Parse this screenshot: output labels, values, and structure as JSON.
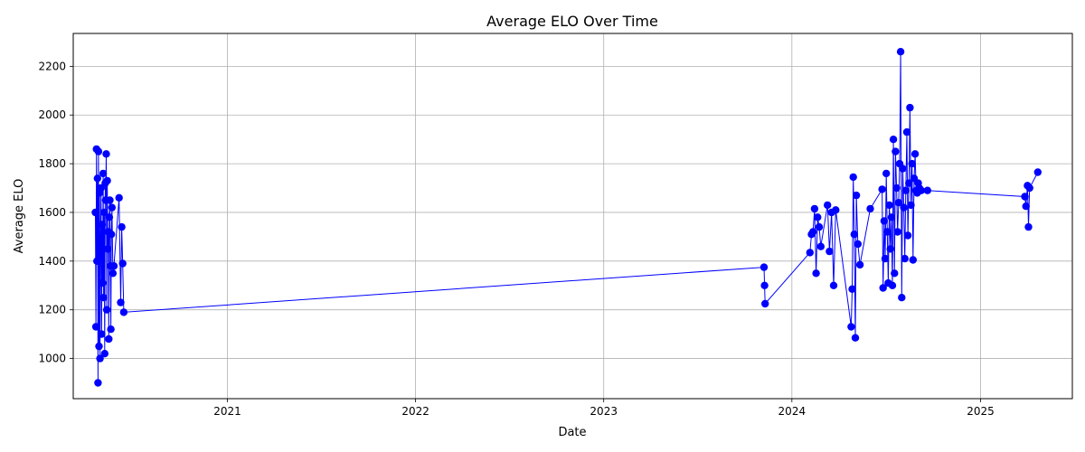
{
  "chart_data": {
    "type": "line",
    "title": "Average ELO Over Time",
    "xlabel": "Date",
    "ylabel": "Average ELO",
    "x_ticks": [
      "2021",
      "2022",
      "2023",
      "2024",
      "2025"
    ],
    "y_ticks": [
      1000,
      1200,
      1400,
      1600,
      1800,
      2000,
      2200
    ],
    "xlim": [
      "2020-03-08",
      "2025-06-28"
    ],
    "ylim": [
      835,
      2335
    ],
    "grid": true,
    "marker": "circle",
    "line_color": "#0000ff",
    "series": [
      {
        "x": [
          "2020-04-20",
          "2020-04-21",
          "2020-04-22",
          "2020-04-23",
          "2020-04-24",
          "2020-04-25",
          "2020-04-26",
          "2020-04-27",
          "2020-04-28",
          "2020-04-29",
          "2020-04-30",
          "2020-05-01",
          "2020-05-02",
          "2020-05-03",
          "2020-05-04",
          "2020-05-05",
          "2020-05-06",
          "2020-05-07",
          "2020-05-08",
          "2020-05-09",
          "2020-05-10",
          "2020-05-11",
          "2020-05-12",
          "2020-05-13",
          "2020-05-14",
          "2020-05-15",
          "2020-05-16",
          "2020-05-17",
          "2020-05-18",
          "2020-05-19",
          "2020-05-20",
          "2020-05-21",
          "2020-05-22",
          "2020-05-24",
          "2020-05-26",
          "2020-06-05",
          "2020-06-08",
          "2020-06-10",
          "2020-06-12",
          "2020-06-14",
          "2023-11-08",
          "2023-11-09",
          "2023-11-10",
          "2024-02-05",
          "2024-02-08",
          "2024-02-11",
          "2024-02-14",
          "2024-02-17",
          "2024-02-20",
          "2024-02-23",
          "2024-02-26",
          "2024-03-10",
          "2024-03-14",
          "2024-03-18",
          "2024-03-22",
          "2024-03-26",
          "2024-04-25",
          "2024-04-27",
          "2024-04-29",
          "2024-05-01",
          "2024-05-03",
          "2024-05-05",
          "2024-05-08",
          "2024-05-12",
          "2024-06-01",
          "2024-06-24",
          "2024-06-26",
          "2024-06-28",
          "2024-06-30",
          "2024-07-02",
          "2024-07-04",
          "2024-07-06",
          "2024-07-08",
          "2024-07-10",
          "2024-07-12",
          "2024-07-14",
          "2024-07-16",
          "2024-07-18",
          "2024-07-20",
          "2024-07-22",
          "2024-07-24",
          "2024-07-26",
          "2024-07-28",
          "2024-07-30",
          "2024-08-01",
          "2024-08-03",
          "2024-08-05",
          "2024-08-07",
          "2024-08-09",
          "2024-08-11",
          "2024-08-13",
          "2024-08-15",
          "2024-08-17",
          "2024-08-19",
          "2024-08-21",
          "2024-08-23",
          "2024-08-25",
          "2024-08-27",
          "2024-08-29",
          "2024-08-31",
          "2024-09-02",
          "2024-09-04",
          "2024-09-06",
          "2024-09-08",
          "2024-09-20",
          "2025-03-28",
          "2025-03-30",
          "2025-04-02",
          "2025-04-04",
          "2025-04-06",
          "2025-04-22"
        ],
        "y": [
          1600,
          1130,
          1860,
          1400,
          1740,
          900,
          1850,
          1050,
          1680,
          1000,
          1500,
          1700,
          1100,
          1550,
          1310,
          1760,
          1250,
          1600,
          1020,
          1720,
          1650,
          1840,
          1200,
          1730,
          1450,
          1520,
          1080,
          1580,
          1650,
          1380,
          1120,
          1510,
          1620,
          1350,
          1380,
          1660,
          1230,
          1540,
          1390,
          1190,
          1375,
          1300,
          1225,
          1435,
          1510,
          1520,
          1615,
          1350,
          1580,
          1540,
          1460,
          1630,
          1440,
          1600,
          1300,
          1610,
          1130,
          1285,
          1745,
          1510,
          1085,
          1670,
          1470,
          1385,
          1615,
          1695,
          1290,
          1565,
          1410,
          1760,
          1520,
          1310,
          1630,
          1450,
          1580,
          1300,
          1900,
          1350,
          1850,
          1700,
          1520,
          1640,
          1800,
          2260,
          1250,
          1780,
          1620,
          1410,
          1690,
          1930,
          1505,
          1720,
          2030,
          1630,
          1800,
          1405,
          1740,
          1840,
          1690,
          1680,
          1720,
          1700,
          1690,
          1690,
          1690,
          1665,
          1625,
          1710,
          1540,
          1700,
          1765
        ]
      }
    ]
  }
}
